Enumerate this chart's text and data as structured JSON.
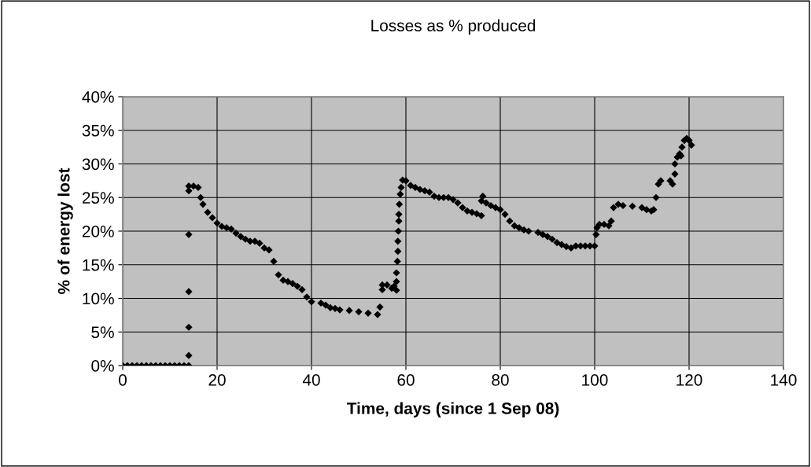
{
  "chart_data": {
    "type": "scatter",
    "title": "Losses as % produced",
    "xlabel": "Time, days (since 1 Sep 08)",
    "ylabel": "% of energy lost",
    "x": [
      0,
      1,
      2,
      3,
      4,
      5,
      6,
      7,
      8,
      9,
      10,
      11,
      12,
      13,
      14,
      14,
      14,
      14,
      14,
      14,
      14,
      15,
      16,
      16.5,
      17,
      18,
      19,
      20,
      21,
      22,
      23,
      24,
      25,
      26,
      27,
      28,
      29,
      30,
      31,
      32,
      33,
      34,
      35,
      36,
      37,
      38,
      39,
      40,
      42,
      43,
      44,
      45,
      46,
      48,
      50,
      52,
      54,
      54.5,
      55,
      55,
      56,
      57,
      58,
      57.5,
      58,
      58,
      58.2,
      58.3,
      58.3,
      58.4,
      58.5,
      58.5,
      58.6,
      58.8,
      59,
      59.3,
      60,
      61,
      62,
      63,
      64,
      65,
      66,
      67,
      68,
      69,
      70,
      71,
      72,
      73,
      74,
      75,
      76,
      76,
      76.3,
      77,
      78,
      79,
      80,
      81,
      82,
      83,
      84,
      85,
      86,
      88,
      89,
      90,
      91,
      92,
      93,
      94,
      95,
      96,
      97,
      98,
      99,
      100,
      100.3,
      100.5,
      101,
      102,
      103,
      103.5,
      104,
      105,
      106,
      108,
      110,
      111,
      112,
      112.5,
      113,
      113.5,
      114,
      116,
      116.5,
      117,
      117,
      117.5,
      118,
      118.3,
      118.5,
      119,
      119.5,
      120,
      120.5
    ],
    "values": [
      0,
      0,
      0,
      0,
      0,
      0,
      0,
      0,
      0,
      0,
      0,
      0,
      0,
      0,
      0,
      1.5,
      5.7,
      11,
      19.5,
      26,
      26.7,
      26.7,
      26.5,
      25,
      24,
      22.8,
      22,
      21.2,
      20.7,
      20.5,
      20.3,
      19.7,
      19.2,
      18.8,
      18.5,
      18.5,
      18.2,
      17.5,
      17.2,
      15.5,
      13.5,
      12.7,
      12.5,
      12.2,
      11.8,
      11.3,
      10.2,
      9.5,
      9.3,
      9,
      8.6,
      8.5,
      8.3,
      8.2,
      8,
      7.8,
      7.6,
      8.7,
      11.3,
      12,
      12,
      11.5,
      11.2,
      11.8,
      12.5,
      13.8,
      15.5,
      17,
      18.5,
      20,
      21.5,
      22.5,
      24,
      25.5,
      26.5,
      27.6,
      27.5,
      26.8,
      26.5,
      26.2,
      26,
      25.8,
      25.2,
      25,
      25,
      25,
      24.7,
      24.2,
      23.5,
      23,
      22.8,
      22.6,
      22.3,
      24.5,
      25.2,
      24.2,
      23.8,
      23.5,
      23.2,
      22.5,
      21.5,
      20.8,
      20.5,
      20.2,
      20,
      19.8,
      19.5,
      19.2,
      18.8,
      18.3,
      18,
      17.7,
      17.5,
      17.8,
      17.8,
      17.8,
      17.8,
      17.8,
      19.5,
      20.5,
      21,
      21,
      20.8,
      21.5,
      23.5,
      24,
      23.8,
      23.7,
      23.5,
      23.2,
      23,
      23.2,
      25,
      27,
      27.5,
      27.5,
      27,
      28.5,
      30,
      31,
      31.5,
      31.2,
      32.5,
      33.5,
      33.8,
      33.5,
      32.8
    ],
    "color": "#000000",
    "marker": "diamond",
    "grid": true,
    "xlim": [
      0,
      140
    ],
    "xticks": [
      0,
      20,
      40,
      60,
      80,
      100,
      120,
      140
    ],
    "ylim": [
      0,
      40
    ],
    "yticks": [
      {
        "value": 0,
        "label": "0%"
      },
      {
        "value": 5,
        "label": "5%"
      },
      {
        "value": 10,
        "label": "10%"
      },
      {
        "value": 15,
        "label": "15%"
      },
      {
        "value": 20,
        "label": "20%"
      },
      {
        "value": 25,
        "label": "25%"
      },
      {
        "value": 30,
        "label": "30%"
      },
      {
        "value": 35,
        "label": "35%"
      },
      {
        "value": 40,
        "label": "40%"
      }
    ]
  }
}
